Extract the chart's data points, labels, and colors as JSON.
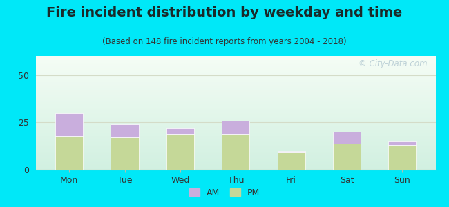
{
  "title": "Fire incident distribution by weekday and time",
  "subtitle": "(Based on 148 fire incident reports from years 2004 - 2018)",
  "categories": [
    "Mon",
    "Tue",
    "Wed",
    "Thu",
    "Fri",
    "Sat",
    "Sun"
  ],
  "pm_values": [
    18,
    17,
    19,
    19,
    9,
    14,
    13
  ],
  "am_values": [
    12,
    7,
    3,
    7,
    1,
    6,
    2
  ],
  "am_color": "#c9aedd",
  "pm_color": "#c5d898",
  "background_outer": "#00e8f8",
  "ylim": [
    0,
    60
  ],
  "yticks": [
    0,
    25,
    50
  ],
  "bar_width": 0.5,
  "title_fontsize": 14,
  "subtitle_fontsize": 8.5,
  "tick_fontsize": 9,
  "legend_fontsize": 9,
  "watermark_text": "© City-Data.com",
  "watermark_color": "#b8cdd4",
  "grid_color": "#d4dcc8",
  "spine_color": "#b0c0b0"
}
